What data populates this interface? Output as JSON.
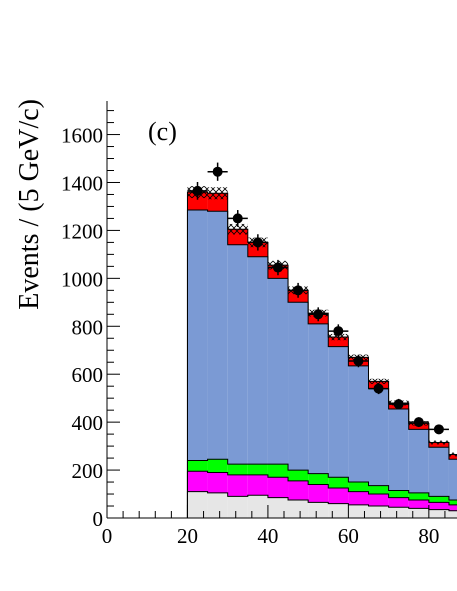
{
  "chart_data": {
    "type": "bar",
    "panel_label": "(c)",
    "xlabel": "",
    "ylabel": "Events / (5 GeV/c)",
    "xlim": [
      0,
      87
    ],
    "ylim": [
      0,
      1740
    ],
    "x_ticks": [
      0,
      20,
      40,
      60,
      80
    ],
    "x_tick_labels": [
      "0",
      "20",
      "40",
      "60",
      "80"
    ],
    "y_ticks": [
      0,
      200,
      400,
      600,
      800,
      1000,
      1200,
      1400,
      1600
    ],
    "y_tick_labels": [
      "0",
      "200",
      "400",
      "600",
      "800",
      "1000",
      "1200",
      "1400",
      "1600"
    ],
    "bin_edges": [
      20,
      25,
      30,
      35,
      40,
      45,
      50,
      55,
      60,
      65,
      70,
      75,
      80,
      85,
      87
    ],
    "stacked_series": [
      {
        "color": "#e6e6e6",
        "values": [
          110,
          105,
          90,
          95,
          85,
          75,
          65,
          60,
          55,
          50,
          45,
          40,
          35,
          30
        ]
      },
      {
        "color": "#ff00ff",
        "values": [
          85,
          85,
          90,
          85,
          85,
          80,
          75,
          65,
          55,
          50,
          40,
          35,
          30,
          25
        ]
      },
      {
        "color": "#00ff00",
        "values": [
          45,
          55,
          45,
          45,
          55,
          45,
          45,
          45,
          40,
          35,
          30,
          30,
          25,
          20
        ]
      },
      {
        "color": "#7b9ad4",
        "values": [
          1045,
          1035,
          915,
          865,
          775,
          700,
          625,
          545,
          485,
          405,
          340,
          265,
          205,
          170
        ]
      },
      {
        "color": "#ff0000",
        "values": [
          75,
          75,
          65,
          60,
          55,
          50,
          45,
          40,
          35,
          30,
          25,
          25,
          20,
          20
        ]
      }
    ],
    "hatch_halfwidth": [
      25,
      25,
      22,
      20,
      18,
      16,
      14,
      13,
      12,
      11,
      10,
      9,
      8,
      8
    ],
    "points": {
      "x": [
        22.5,
        27.5,
        32.5,
        37.5,
        42.5,
        47.5,
        52.5,
        57.5,
        62.5,
        67.5,
        72.5,
        77.5,
        82.5
      ],
      "y": [
        1365,
        1445,
        1250,
        1150,
        1045,
        950,
        850,
        780,
        655,
        540,
        475,
        400,
        370
      ],
      "yerr": [
        37,
        38,
        35,
        34,
        32,
        31,
        29,
        28,
        26,
        23,
        22,
        20,
        19
      ],
      "xerr": 2.5
    }
  }
}
